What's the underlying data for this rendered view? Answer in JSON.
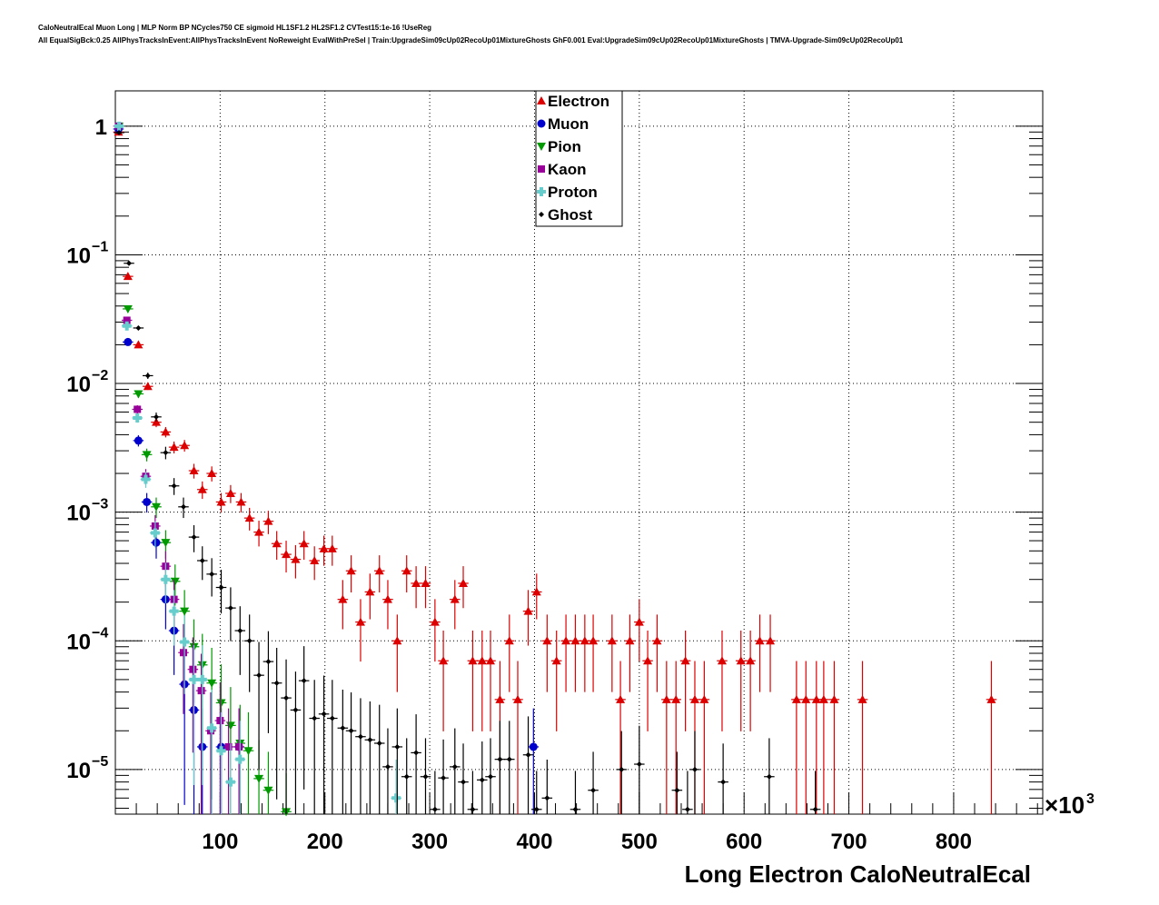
{
  "chart_data": {
    "type": "scatter",
    "title_line1": "CaloNeutralEcal Muon Long | MLP Norm BP NCycles750 CE sigmoid HL1SF1.2 HL2SF1.2 CVTest15:1e-16 !UseReg",
    "title_line2": "All EqualSigBck:0.25 AllPhysTracksInEvent:AllPhysTracksInEvent NoReweight EvalWithPreSel | Train:UpgradeSim09cUp02RecoUp01MixtureGhosts GhF0.001 Eval:UpgradeSim09cUp02RecoUp01MixtureGhosts | TMVA-Upgrade-Sim09cUp02RecoUp01",
    "xlabel": "Long Electron CaloNeutralEcal",
    "x_multiplier_label": "×10",
    "x_multiplier_exp": "3",
    "xlim": [
      0,
      885
    ],
    "ylim": [
      4.5e-06,
      1.88
    ],
    "ylog": true,
    "grid": true,
    "legend_position": "top-center",
    "x_ticks": [
      "100",
      "200",
      "300",
      "400",
      "500",
      "600",
      "700",
      "800"
    ],
    "y_ticks": [
      {
        "base": "1",
        "exp": ""
      },
      {
        "base": "10",
        "exp": "−1"
      },
      {
        "base": "10",
        "exp": "−2"
      },
      {
        "base": "10",
        "exp": "−3"
      },
      {
        "base": "10",
        "exp": "−4"
      },
      {
        "base": "10",
        "exp": "−5"
      }
    ],
    "series": [
      {
        "name": "Electron",
        "color": "#dd0000",
        "marker": "triangle-up",
        "x": [
          3,
          12,
          22,
          31,
          39,
          48,
          56,
          66,
          75,
          83,
          92,
          101,
          110,
          120,
          128,
          137,
          146,
          154,
          163,
          172,
          180,
          190,
          199,
          207,
          217,
          225,
          234,
          243,
          252,
          260,
          269,
          278,
          287,
          296,
          305,
          313,
          324,
          332,
          341,
          350,
          358,
          367,
          376,
          384,
          394,
          402,
          412,
          421,
          430,
          439,
          448,
          456,
          474,
          482,
          491,
          500,
          508,
          517,
          526,
          535,
          544,
          553,
          562,
          579,
          597,
          606,
          615,
          625,
          650,
          659,
          669,
          676,
          686,
          713,
          836
        ],
        "y": [
          0.9,
          0.068,
          0.02,
          0.0095,
          0.005,
          0.0042,
          0.0032,
          0.0033,
          0.0021,
          0.0015,
          0.002,
          0.0012,
          0.0014,
          0.0012,
          0.0009,
          0.0007,
          0.00085,
          0.00057,
          0.00047,
          0.00043,
          0.00057,
          0.00042,
          0.00052,
          0.00052,
          0.00021,
          0.00035,
          0.00014,
          0.00024,
          0.00035,
          0.00021,
          0.0001,
          0.00035,
          0.00028,
          0.00028,
          0.00014,
          7e-05,
          0.00021,
          0.00028,
          7e-05,
          7e-05,
          7e-05,
          3.5e-05,
          0.0001,
          3.5e-05,
          0.00017,
          0.00024,
          0.0001,
          7e-05,
          0.0001,
          0.0001,
          0.0001,
          0.0001,
          0.0001,
          3.5e-05,
          0.0001,
          0.00014,
          7e-05,
          0.0001,
          3.5e-05,
          3.5e-05,
          7e-05,
          3.5e-05,
          3.5e-05,
          7e-05,
          7e-05,
          7e-05,
          0.0001,
          0.0001,
          3.5e-05,
          3.5e-05,
          3.5e-05,
          3.5e-05,
          3.5e-05,
          3.5e-05,
          3.5e-05
        ]
      },
      {
        "name": "Muon",
        "color": "#0000cc",
        "marker": "circle",
        "x": [
          3,
          12,
          22,
          30,
          39,
          48,
          56,
          66,
          75,
          83,
          101,
          118,
          399
        ],
        "y": [
          0.95,
          0.021,
          0.0036,
          0.0012,
          0.00058,
          0.00021,
          0.00012,
          4.6e-05,
          2.9e-05,
          1.5e-05,
          1.5e-05,
          1.5e-05,
          1.5e-05
        ]
      },
      {
        "name": "Pion",
        "color": "#009900",
        "marker": "triangle-down",
        "x": [
          3.5,
          12,
          22,
          30,
          39,
          48,
          57,
          66,
          75,
          83,
          92,
          101,
          110,
          119,
          127,
          137,
          146,
          163
        ],
        "y": [
          1.0,
          0.038,
          0.0083,
          0.0028,
          0.0011,
          0.00058,
          0.00029,
          0.00017,
          9e-05,
          6.5e-05,
          4.7e-05,
          3.3e-05,
          2.2e-05,
          1.6e-05,
          1.4e-05,
          8.5e-06,
          6.9e-06,
          4.7e-06
        ]
      },
      {
        "name": "Kaon",
        "color": "#990099",
        "marker": "square",
        "x": [
          3,
          11,
          21,
          29,
          38,
          48,
          56,
          65,
          74,
          82,
          91,
          100,
          108,
          118
        ],
        "y": [
          1.0,
          0.031,
          0.0063,
          0.0019,
          0.00078,
          0.00038,
          0.00021,
          8.1e-05,
          6e-05,
          4.1e-05,
          2e-05,
          2.4e-05,
          1.5e-05,
          1.5e-05
        ]
      },
      {
        "name": "Proton",
        "color": "#66cccc",
        "marker": "cross",
        "x": [
          3.5,
          11,
          21,
          29,
          38,
          48,
          56,
          66,
          75,
          83,
          92,
          101,
          110,
          119,
          268
        ],
        "y": [
          1.0,
          0.028,
          0.0054,
          0.0018,
          0.00069,
          0.0003,
          0.00017,
          9.8e-05,
          5e-05,
          5e-05,
          2.1e-05,
          1.4e-05,
          8e-06,
          1.2e-05,
          6e-06
        ]
      },
      {
        "name": "Ghost",
        "color": "#000000",
        "marker": "diamond",
        "x": [
          3.5,
          13,
          22,
          31,
          39,
          48,
          56,
          65,
          75,
          83,
          92,
          101,
          110,
          119,
          128,
          137,
          146,
          154,
          163,
          172,
          180,
          190,
          199,
          207,
          217,
          225,
          234,
          243,
          252,
          260,
          269,
          278,
          287,
          296,
          305,
          313,
          324,
          332,
          341,
          350,
          358,
          367,
          376,
          394,
          402,
          412,
          439,
          456,
          483,
          500,
          536,
          546,
          553,
          580,
          624,
          668
        ],
        "y": [
          0.89,
          0.086,
          0.027,
          0.0115,
          0.0055,
          0.0029,
          0.0016,
          0.0011,
          0.00064,
          0.00042,
          0.00033,
          0.00026,
          0.00018,
          0.00012,
          0.0001,
          5.4e-05,
          6.9e-05,
          4.7e-05,
          3.6e-05,
          2.9e-05,
          4.9e-05,
          2.5e-05,
          2.7e-05,
          2.5e-05,
          2.1e-05,
          2e-05,
          1.8e-05,
          1.7e-05,
          1.6e-05,
          1.05e-05,
          1.5e-05,
          8.8e-06,
          1.35e-05,
          8.8e-06,
          4.9e-06,
          8.6e-06,
          1.05e-05,
          8e-06,
          4.9e-06,
          8.3e-06,
          8.8e-06,
          1.2e-05,
          1.2e-05,
          1.3e-05,
          4.9e-06,
          6e-06,
          4.9e-06,
          6.9e-06,
          1e-05,
          1.1e-05,
          6.9e-06,
          4.9e-06,
          1e-05,
          8e-06,
          8.8e-06,
          4.9e-06
        ]
      }
    ]
  }
}
